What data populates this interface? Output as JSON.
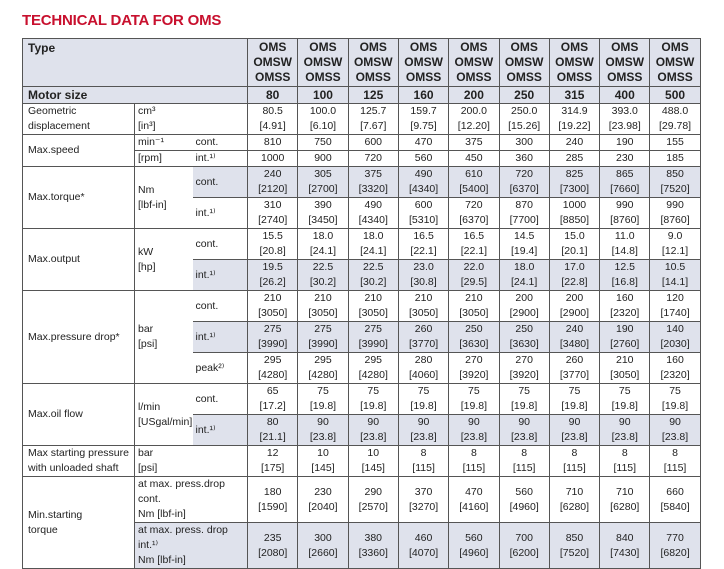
{
  "title": "TECHNICAL DATA FOR OMS",
  "header": {
    "type_label": "Type",
    "models": [
      "OMS",
      "OMSW",
      "OMSS"
    ]
  },
  "motor_size": {
    "label": "Motor size",
    "values": [
      "80",
      "100",
      "125",
      "160",
      "200",
      "250",
      "315",
      "400",
      "500"
    ]
  },
  "rows": {
    "geo": {
      "label": "Geometric displacement",
      "unit1": "cm³",
      "unit2": "[in³]",
      "v1": [
        "80.5",
        "100.0",
        "125.7",
        "159.7",
        "200.0",
        "250.0",
        "314.9",
        "393.0",
        "488.0"
      ],
      "v2": [
        "[4.91]",
        "[6.10]",
        "[7.67]",
        "[9.75]",
        "[12.20]",
        "[15.26]",
        "[19.22]",
        "[23.98]",
        "[29.78]"
      ]
    },
    "speed": {
      "label": "Max.speed",
      "unit1": "min⁻¹",
      "unit2": "[rpm]",
      "cond1": "cont.",
      "cond2": "int.¹⁾",
      "v1": [
        "810",
        "750",
        "600",
        "470",
        "375",
        "300",
        "240",
        "190",
        "155"
      ],
      "v2": [
        "1000",
        "900",
        "720",
        "560",
        "450",
        "360",
        "285",
        "230",
        "185"
      ]
    },
    "torque": {
      "label": "Max.torque*",
      "unit1": "Nm",
      "unit2": "[lbf-in]",
      "cond1": "cont.",
      "cond2": "int.¹⁾",
      "a1": [
        "240",
        "305",
        "375",
        "490",
        "610",
        "720",
        "825",
        "865",
        "850"
      ],
      "a2": [
        "[2120]",
        "[2700]",
        "[3320]",
        "[4340]",
        "[5400]",
        "[6370]",
        "[7300]",
        "[7660]",
        "[7520]"
      ],
      "b1": [
        "310",
        "390",
        "490",
        "600",
        "720",
        "870",
        "1000",
        "990",
        "990"
      ],
      "b2": [
        "[2740]",
        "[3450]",
        "[4340]",
        "[5310]",
        "[6370]",
        "[7700]",
        "[8850]",
        "[8760]",
        "[8760]"
      ]
    },
    "output": {
      "label": "Max.output",
      "unit1": "kW",
      "unit2": "[hp]",
      "cond1": "cont.",
      "cond2": "int.¹⁾",
      "a1": [
        "15.5",
        "18.0",
        "18.0",
        "16.5",
        "16.5",
        "14.5",
        "15.0",
        "11.0",
        "9.0"
      ],
      "a2": [
        "[20.8]",
        "[24.1]",
        "[24.1]",
        "[22.1]",
        "[22.1]",
        "[19.4]",
        "[20.1]",
        "[14.8]",
        "[12.1]"
      ],
      "b1": [
        "19.5",
        "22.5",
        "22.5",
        "23.0",
        "22.0",
        "18.0",
        "17.0",
        "12.5",
        "10.5"
      ],
      "b2": [
        "[26.2]",
        "[30.2]",
        "[30.2]",
        "[30.8]",
        "[29.5]",
        "[24.1]",
        "[22.8]",
        "[16.8]",
        "[14.1]"
      ]
    },
    "pressure": {
      "label": "Max.pressure drop*",
      "unit1": "bar",
      "unit2": "[psi]",
      "cond1": "cont.",
      "cond2": "int.¹⁾",
      "cond3": "peak²⁾",
      "a1": [
        "210",
        "210",
        "210",
        "210",
        "210",
        "200",
        "200",
        "160",
        "120"
      ],
      "a2": [
        "[3050]",
        "[3050]",
        "[3050]",
        "[3050]",
        "[3050]",
        "[2900]",
        "[2900]",
        "[2320]",
        "[1740]"
      ],
      "b1": [
        "275",
        "275",
        "275",
        "260",
        "250",
        "250",
        "240",
        "190",
        "140"
      ],
      "b2": [
        "[3990]",
        "[3990]",
        "[3990]",
        "[3770]",
        "[3630]",
        "[3630]",
        "[3480]",
        "[2760]",
        "[2030]"
      ],
      "c1": [
        "295",
        "295",
        "295",
        "280",
        "270",
        "270",
        "260",
        "210",
        "160"
      ],
      "c2": [
        "[4280]",
        "[4280]",
        "[4280]",
        "[4060]",
        "[3920]",
        "[3920]",
        "[3770]",
        "[3050]",
        "[2320]"
      ]
    },
    "oil": {
      "label": "Max.oil flow",
      "unit1": "l/min",
      "unit2": "[USgal/min]",
      "cond1": "cont.",
      "cond2": "int.¹⁾",
      "a1": [
        "65",
        "75",
        "75",
        "75",
        "75",
        "75",
        "75",
        "75",
        "75"
      ],
      "a2": [
        "[17.2]",
        "[19.8]",
        "[19.8]",
        "[19.8]",
        "[19.8]",
        "[19.8]",
        "[19.8]",
        "[19.8]",
        "[19.8]"
      ],
      "b1": [
        "80",
        "90",
        "90",
        "90",
        "90",
        "90",
        "90",
        "90",
        "90"
      ],
      "b2": [
        "[21.1]",
        "[23.8]",
        "[23.8]",
        "[23.8]",
        "[23.8]",
        "[23.8]",
        "[23.8]",
        "[23.8]",
        "[23.8]"
      ]
    },
    "start_p": {
      "label1": "Max starting pressure",
      "label2": "with unloaded shaft",
      "unit1": "bar",
      "unit2": "[psi]",
      "v1": [
        "12",
        "10",
        "10",
        "8",
        "8",
        "8",
        "8",
        "8",
        "8"
      ],
      "v2": [
        "[175]",
        "[145]",
        "[145]",
        "[115]",
        "[115]",
        "[115]",
        "[115]",
        "[115]",
        "[115]"
      ]
    },
    "start_t": {
      "label1": "Min.starting",
      "label2": "torque",
      "u1": "at max. press.drop cont.",
      "u2": "Nm [lbf-in]",
      "u3": "at max. press. drop int.¹⁾",
      "u4": "Nm [lbf-in]",
      "a1": [
        "180",
        "230",
        "290",
        "370",
        "470",
        "560",
        "710",
        "710",
        "660"
      ],
      "a2": [
        "[1590]",
        "[2040]",
        "[2570]",
        "[3270]",
        "[4160]",
        "[4960]",
        "[6280]",
        "[6280]",
        "[5840]"
      ],
      "b1": [
        "235",
        "300",
        "380",
        "460",
        "560",
        "700",
        "850",
        "840",
        "770"
      ],
      "b2": [
        "[2080]",
        "[2660]",
        "[3360]",
        "[4070]",
        "[4960]",
        "[6200]",
        "[7520]",
        "[7430]",
        "[6820]"
      ]
    }
  }
}
